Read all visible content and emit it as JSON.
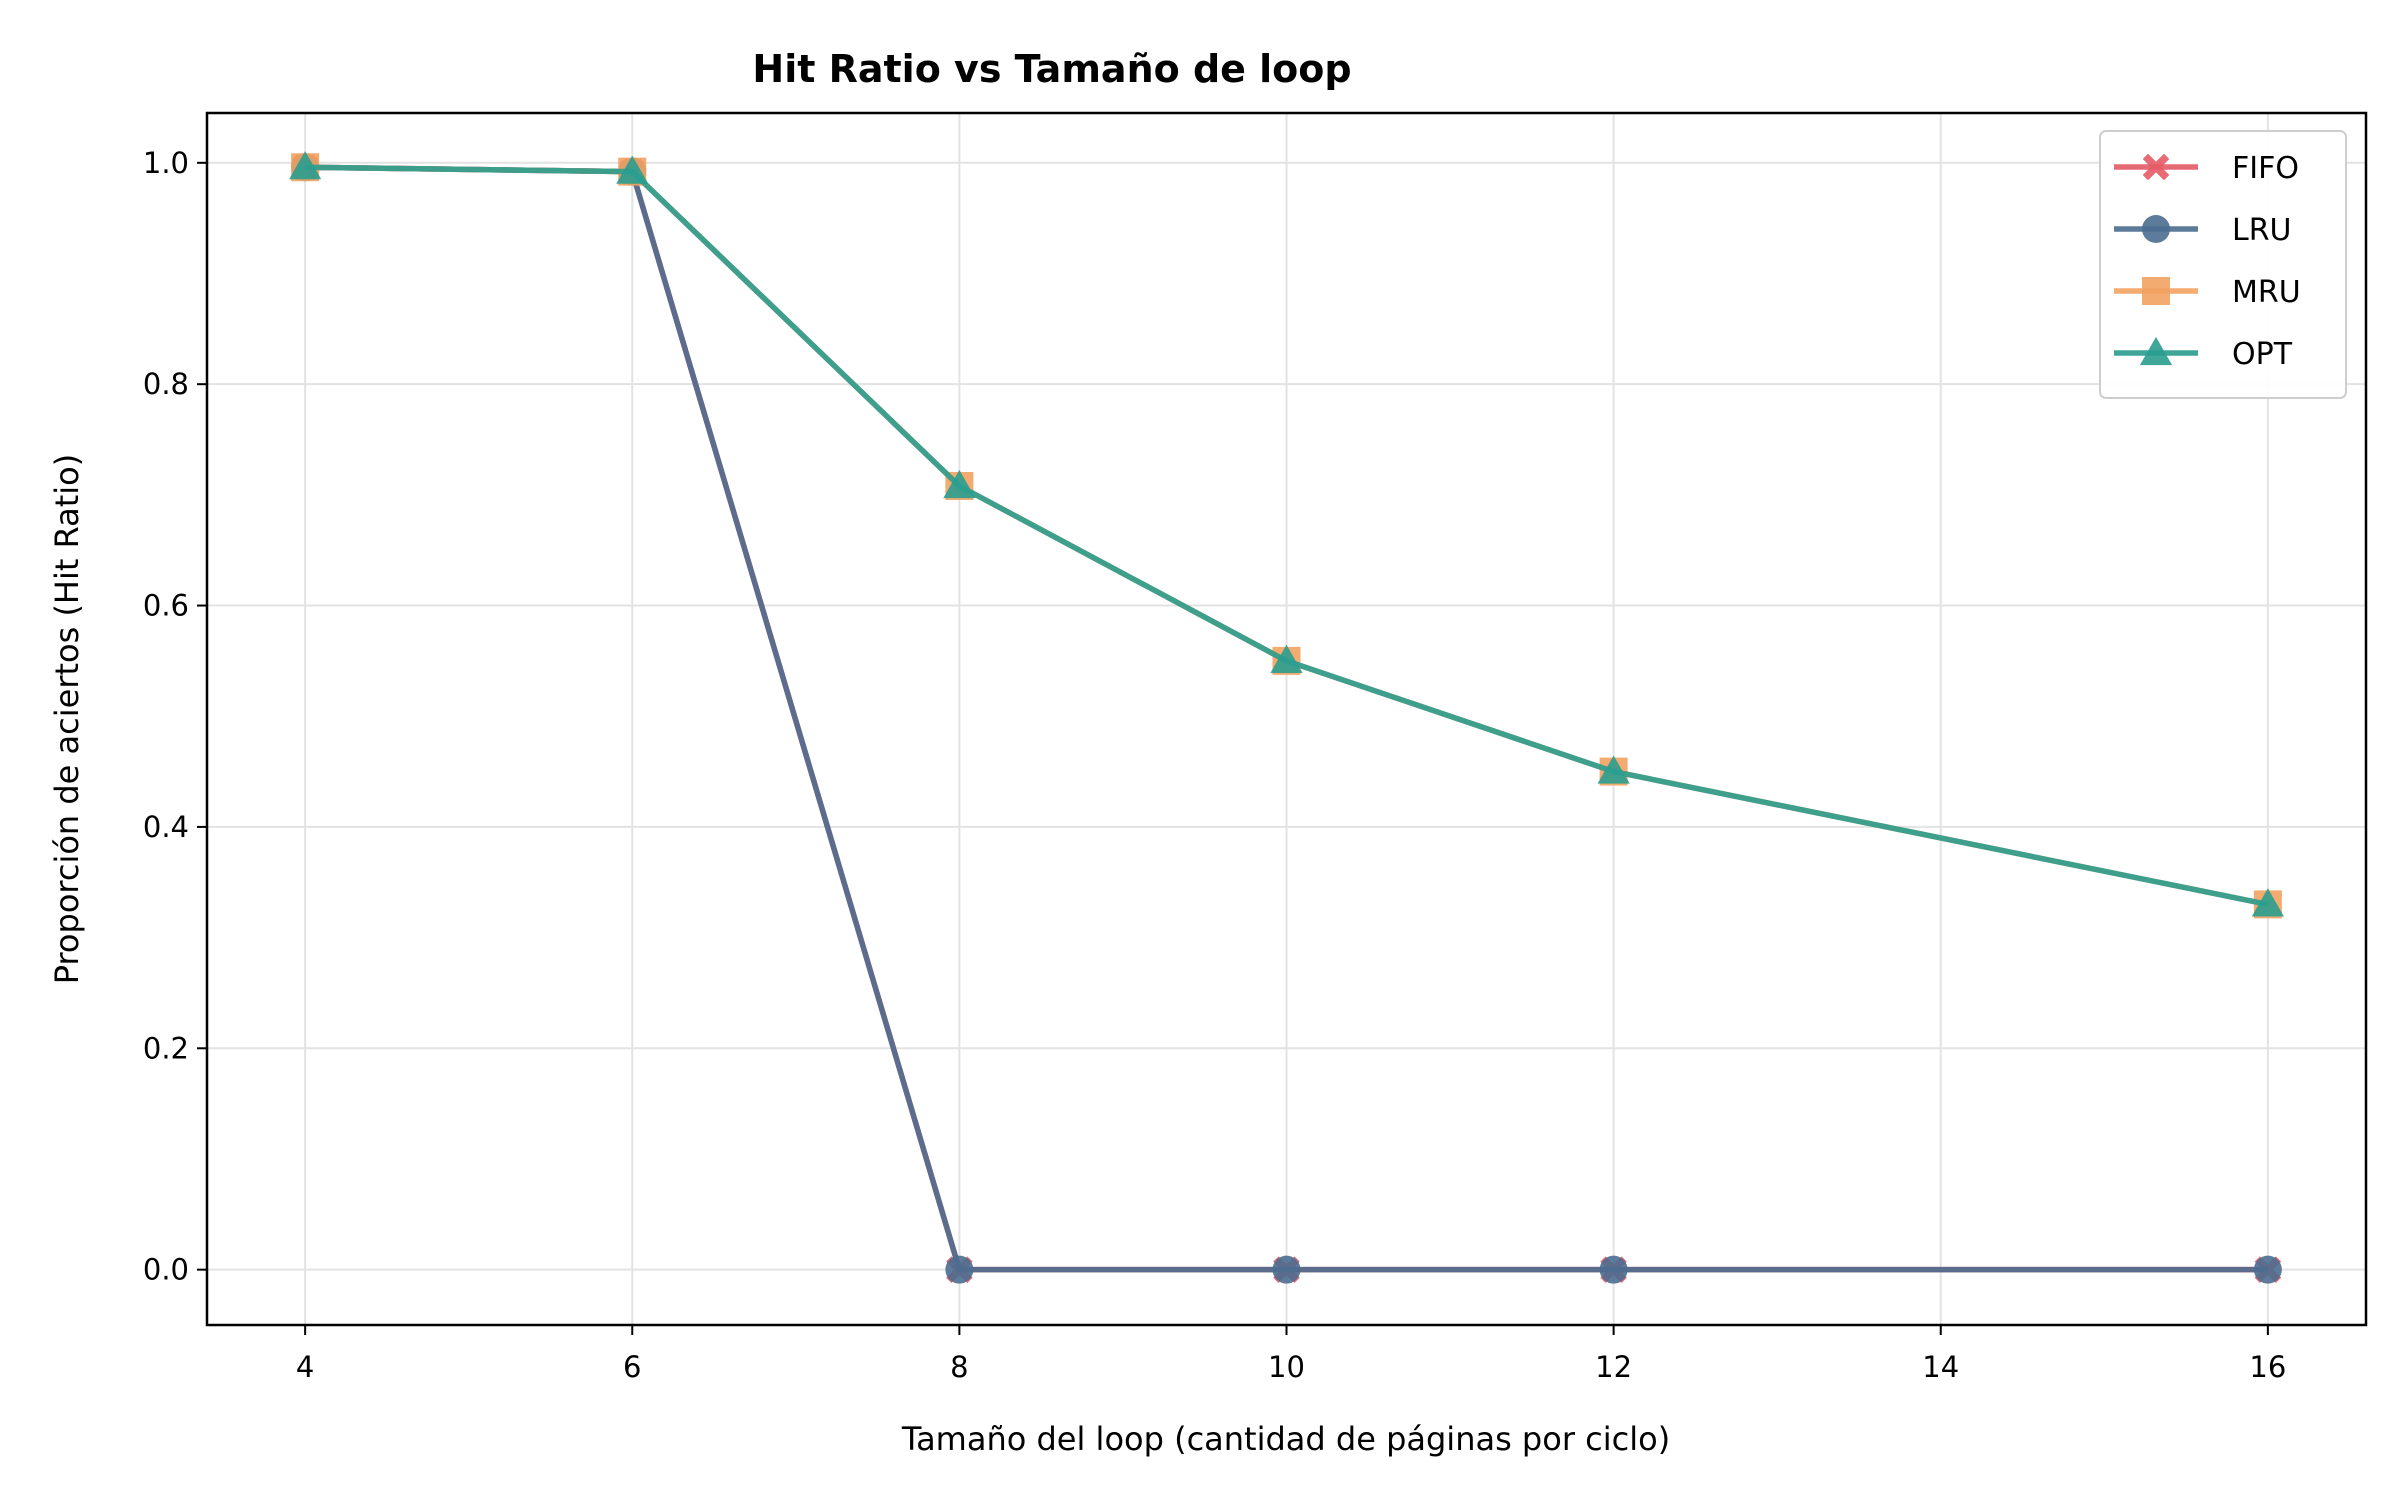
{
  "chart_data": {
    "type": "line",
    "title": "Hit Ratio vs Tamaño de loop",
    "xlabel": "Tamaño del loop (cantidad de páginas por ciclo)",
    "ylabel": "Proporción de aciertos (Hit Ratio)",
    "x": [
      4,
      6,
      8,
      10,
      12,
      16
    ],
    "xlim": [
      3.4,
      16.6
    ],
    "ylim": [
      -0.05,
      1.045
    ],
    "xticks": [
      4,
      6,
      8,
      10,
      12,
      14,
      16
    ],
    "yticks": [
      0.0,
      0.2,
      0.4,
      0.6,
      0.8,
      1.0
    ],
    "ytick_labels": [
      "0.0",
      "0.2",
      "0.4",
      "0.6",
      "0.8",
      "1.0"
    ],
    "grid": true,
    "legend_position": "top-right",
    "series": [
      {
        "name": "FIFO",
        "marker": "x-filled",
        "color": "#e45a65",
        "values": [
          0.996,
          0.992,
          0.0,
          0.0,
          0.0,
          0.0
        ]
      },
      {
        "name": "LRU",
        "marker": "circle",
        "color": "#4b6d8f",
        "values": [
          0.996,
          0.992,
          0.0,
          0.0,
          0.0,
          0.0
        ]
      },
      {
        "name": "MRU",
        "marker": "square",
        "color": "#f2a261",
        "values": [
          0.996,
          0.992,
          0.708,
          0.55,
          0.45,
          0.33
        ]
      },
      {
        "name": "OPT",
        "marker": "triangle",
        "color": "#2a9d8f",
        "values": [
          0.996,
          0.992,
          0.708,
          0.55,
          0.45,
          0.33
        ]
      }
    ]
  }
}
